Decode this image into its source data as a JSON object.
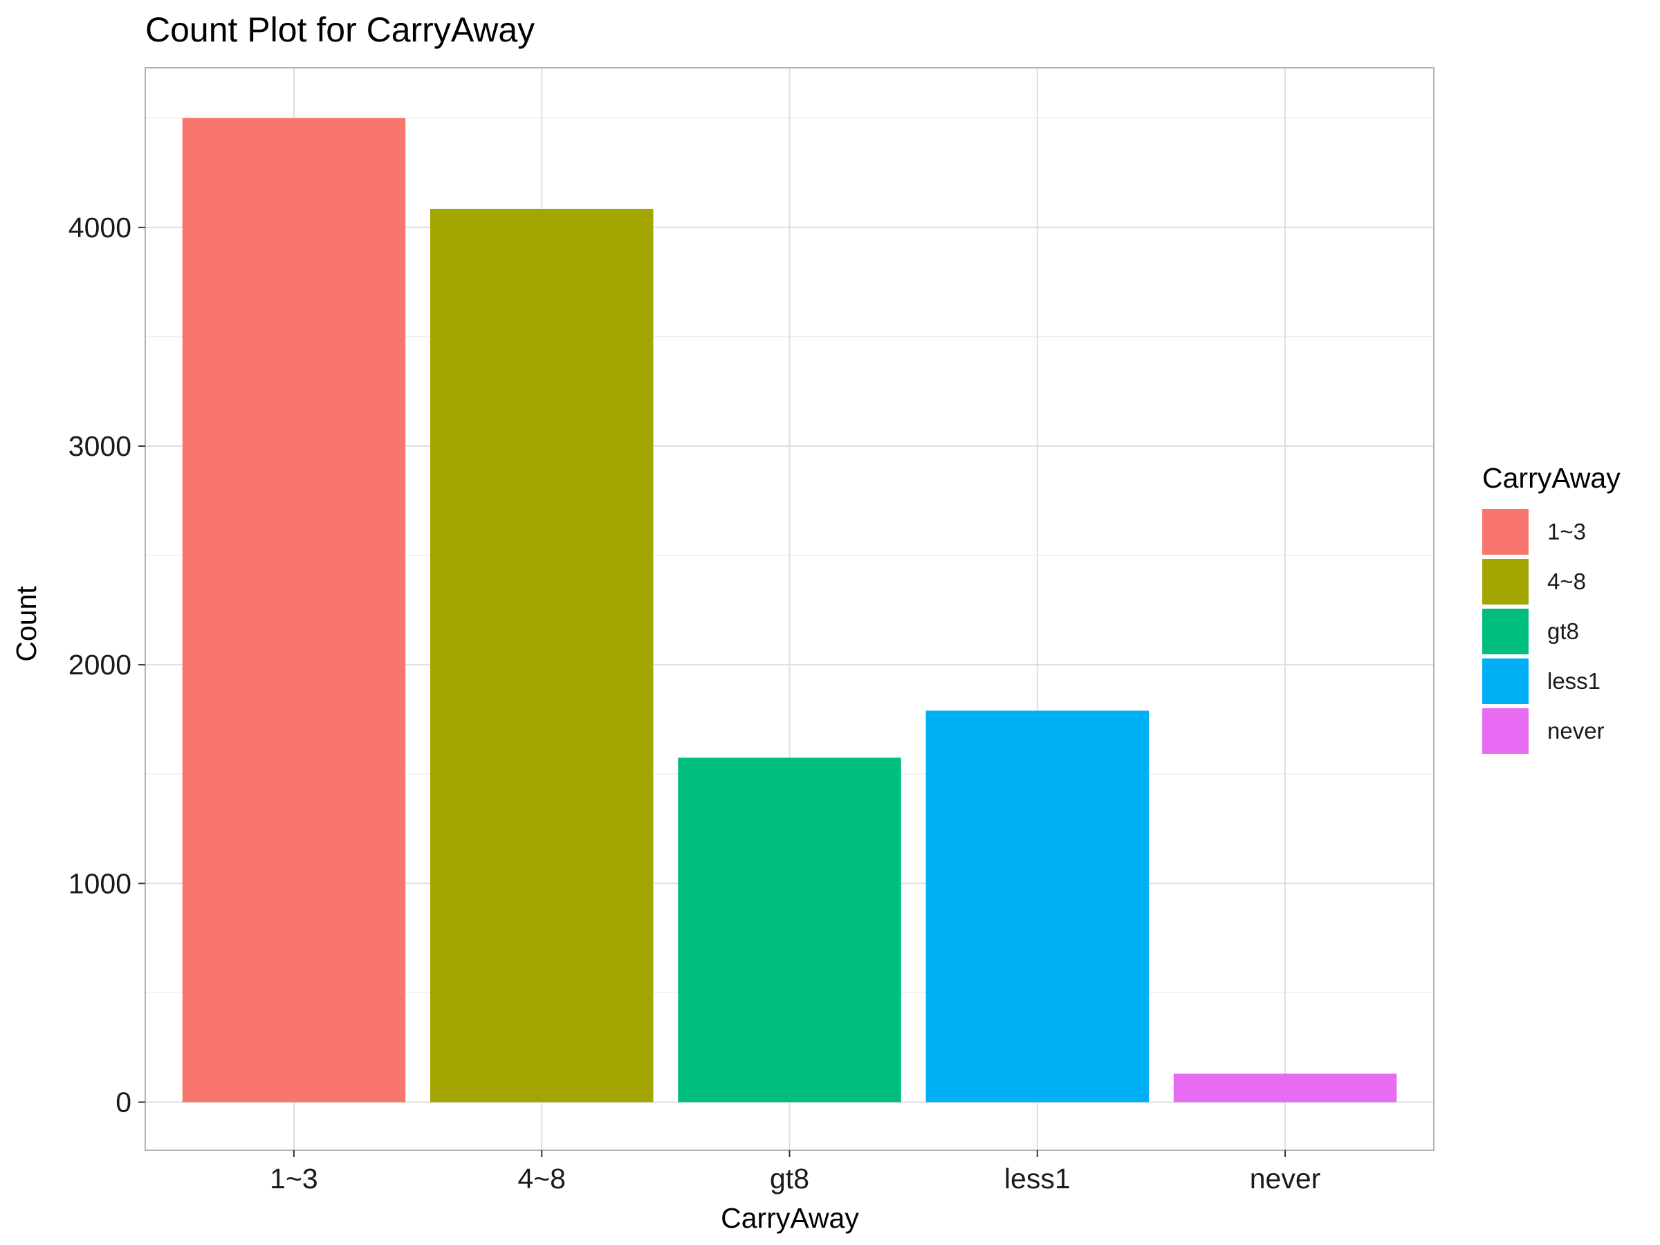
{
  "chart_data": {
    "type": "bar",
    "title": "Count Plot for CarryAway",
    "xlabel": "CarryAway",
    "ylabel": "Count",
    "categories": [
      "1~3",
      "4~8",
      "gt8",
      "less1",
      "never"
    ],
    "values": [
      4500,
      4085,
      1575,
      1790,
      130
    ],
    "colors": [
      "#F8766D",
      "#A3A500",
      "#00BF7D",
      "#00B0F6",
      "#E76BF3"
    ],
    "ylim": [
      -220,
      4730
    ],
    "yticks": [
      0,
      1000,
      2000,
      3000,
      4000
    ],
    "yticks_minor": [
      500,
      1500,
      2500,
      3500,
      4500
    ],
    "grid": true,
    "legend": {
      "title": "CarryAway",
      "position": "right",
      "entries": [
        "1~3",
        "4~8",
        "gt8",
        "less1",
        "never"
      ]
    }
  }
}
